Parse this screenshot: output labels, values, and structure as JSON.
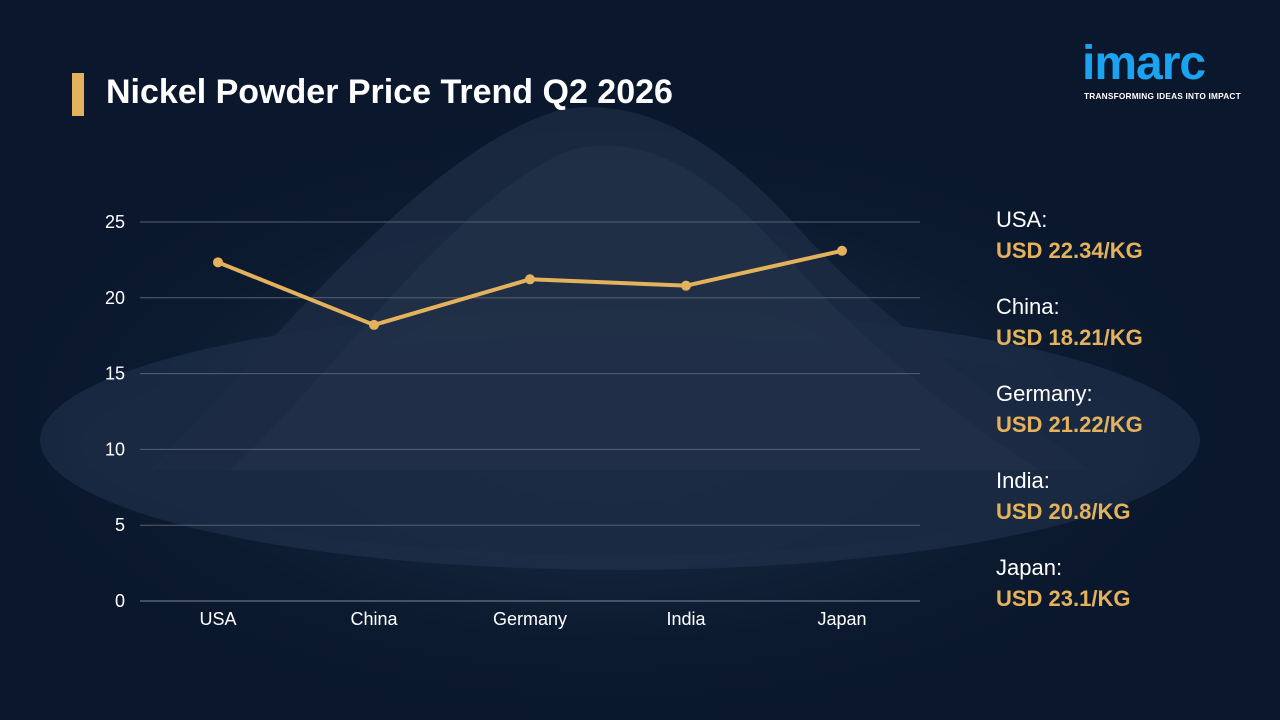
{
  "title": "Nickel Powder Price Trend Q2 2026",
  "logo": {
    "word": "imarc",
    "tagline": "TRANSFORMING IDEAS INTO IMPACT"
  },
  "colors": {
    "accent": "#e4b25c",
    "logo": "#1aa3f0",
    "text": "#ffffff",
    "background": "#0b1a2f"
  },
  "chart_data": {
    "type": "line",
    "categories": [
      "USA",
      "China",
      "Germany",
      "India",
      "Japan"
    ],
    "values": [
      22.34,
      18.21,
      21.22,
      20.8,
      23.1
    ],
    "ylim": [
      0,
      25
    ],
    "yticks": [
      0,
      5,
      10,
      15,
      20,
      25
    ],
    "grid": true
  },
  "legend": [
    {
      "country": "USA:",
      "value": "USD 22.34/KG"
    },
    {
      "country": "China:",
      "value": "USD 18.21/KG"
    },
    {
      "country": "Germany:",
      "value": "USD 21.22/KG"
    },
    {
      "country": "India:",
      "value": "USD 20.8/KG"
    },
    {
      "country": "Japan:",
      "value": "USD 23.1/KG"
    }
  ]
}
